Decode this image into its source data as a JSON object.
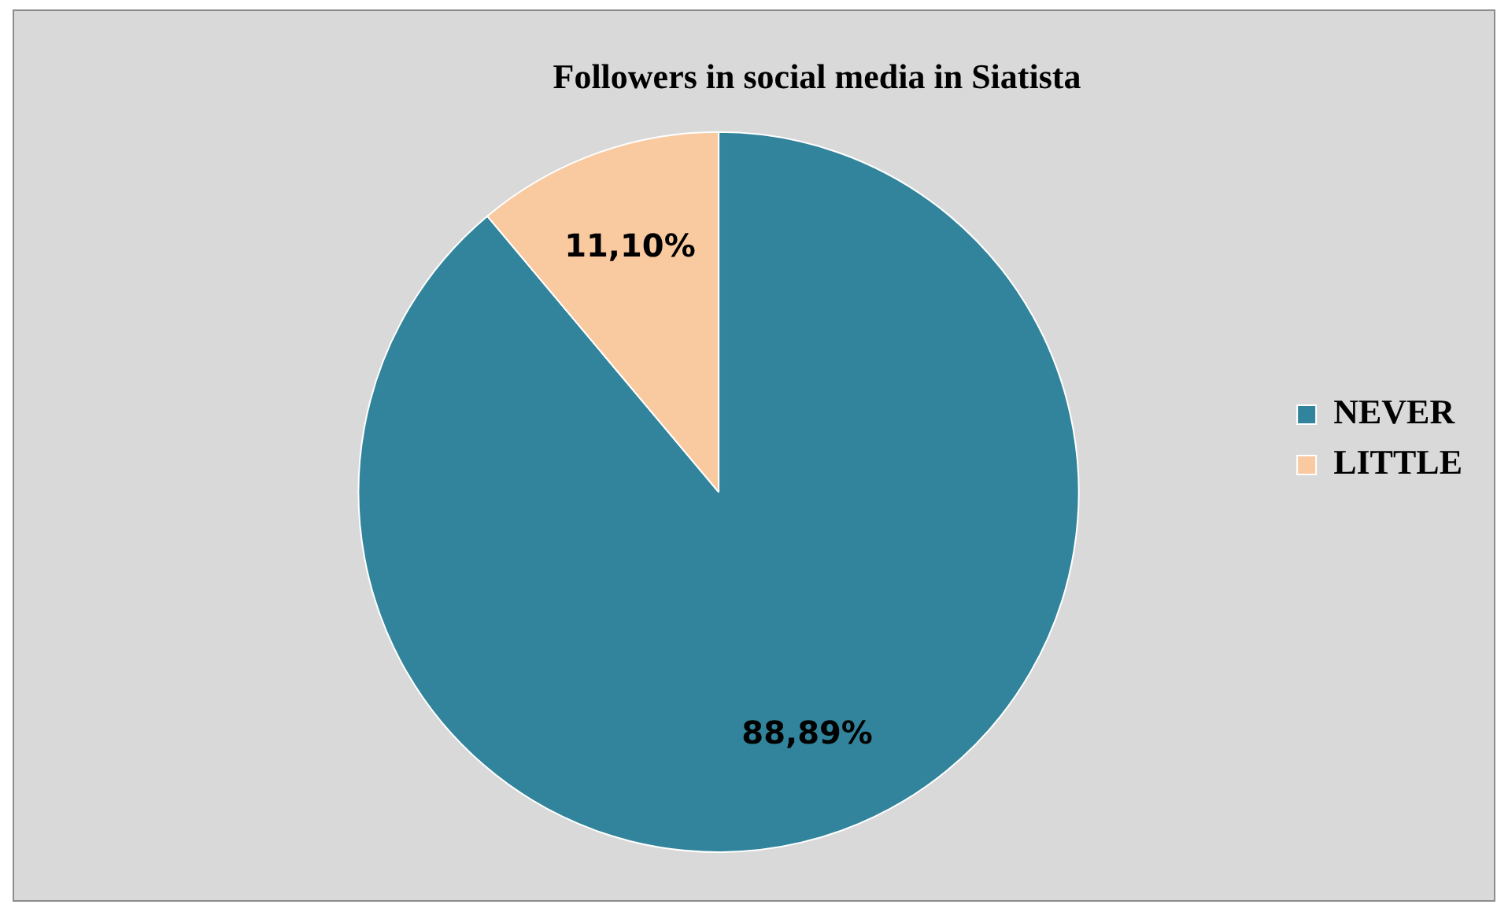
{
  "chart_data": {
    "type": "pie",
    "title": "Followers in social media in Siatista",
    "categories": [
      "NEVER",
      "LITTLE"
    ],
    "values": [
      88.89,
      11.1
    ],
    "value_labels": [
      "88,89%",
      "11,10%"
    ],
    "colors": [
      "#31849b",
      "#f9c9a0"
    ],
    "legend": "right"
  }
}
